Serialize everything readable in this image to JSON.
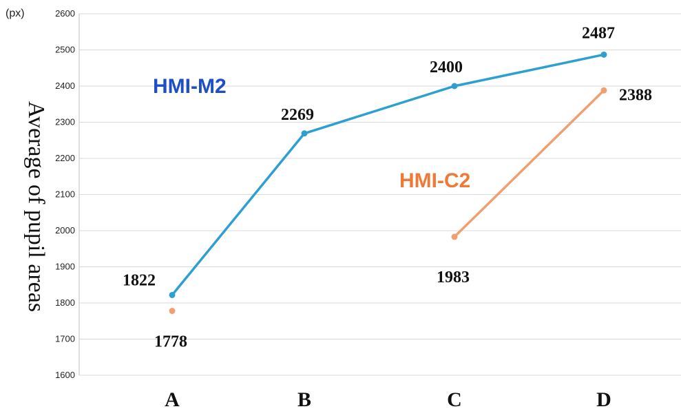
{
  "chart_data": {
    "type": "line",
    "title": "",
    "xlabel": "",
    "ylabel": "Average of pupil areas",
    "unit": "(px)",
    "categories": [
      "A",
      "B",
      "C",
      "D"
    ],
    "ylim": [
      1600,
      2600
    ],
    "yticks": [
      1600,
      1700,
      1800,
      1900,
      2000,
      2100,
      2200,
      2300,
      2400,
      2500,
      2600
    ],
    "grid": true,
    "series": [
      {
        "name": "HMI-M2",
        "color": "#2e9fd1",
        "label_color": "#1f4fc4",
        "values": [
          1822,
          2269,
          2400,
          2487
        ]
      },
      {
        "name": "HMI-C2",
        "color": "#f0a070",
        "label_color": "#f07a35",
        "values": [
          1778,
          null,
          1983,
          2388
        ]
      }
    ]
  }
}
